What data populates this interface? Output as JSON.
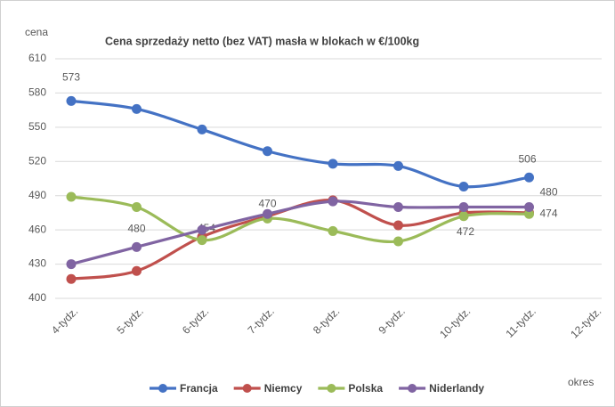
{
  "chart_data": {
    "type": "line",
    "title": "Cena sprzedaży netto (bez VAT) masła w blokach w €/100kg",
    "y_label": "cena",
    "x_label": "okres",
    "categories": [
      "4-tydz.",
      "5-tydz.",
      "6-tydz.",
      "7-tydz.",
      "8-tydz.",
      "9-tydz.",
      "10-tydz.",
      "11-tydz.",
      "12-tydz."
    ],
    "ylim": [
      400,
      610
    ],
    "yticks": [
      400,
      430,
      460,
      490,
      520,
      550,
      580,
      610
    ],
    "grid": true,
    "legend": "bottom",
    "series": [
      {
        "name": "Francja",
        "color": "#4472c4",
        "values": [
          573,
          566,
          548,
          529,
          518,
          516,
          498,
          506,
          null
        ],
        "value_labels": [
          "573",
          null,
          null,
          null,
          null,
          null,
          null,
          "506",
          null
        ]
      },
      {
        "name": "Niemcy",
        "color": "#c0504d",
        "values": [
          417,
          424,
          454,
          472,
          486,
          464,
          475,
          475,
          null
        ],
        "value_labels": [
          null,
          null,
          "454",
          null,
          null,
          null,
          null,
          null,
          null
        ]
      },
      {
        "name": "Polska",
        "color": "#9bbb59",
        "values": [
          489,
          480,
          451,
          470,
          459,
          450,
          472,
          474,
          null
        ],
        "value_labels": [
          null,
          "480",
          null,
          "470",
          null,
          null,
          "472",
          "474",
          null
        ]
      },
      {
        "name": "Niderlandy",
        "color": "#8064a2",
        "values": [
          430,
          445,
          460,
          474,
          485,
          480,
          480,
          480,
          null
        ],
        "value_labels": [
          null,
          null,
          null,
          null,
          null,
          null,
          null,
          "480",
          null
        ]
      }
    ]
  }
}
